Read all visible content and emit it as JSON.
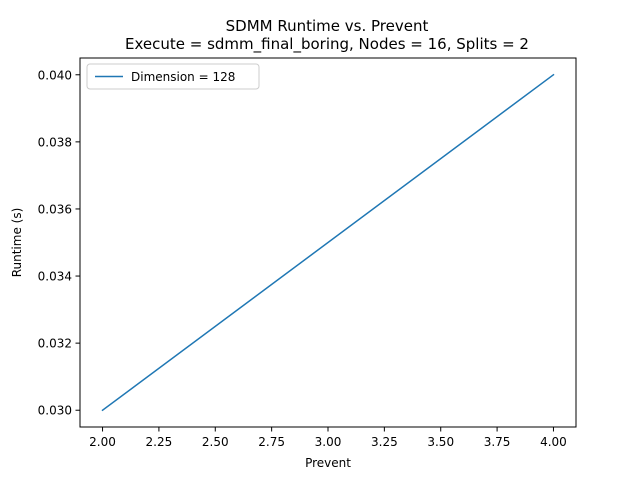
{
  "chart_data": {
    "type": "line",
    "title": "SDMM Runtime vs. Prevent",
    "subtitle": "Execute = sdmm_final_boring, Nodes = 16, Splits = 2",
    "xlabel": "Prevent",
    "ylabel": "Runtime (s)",
    "xlim": [
      1.9,
      4.1
    ],
    "ylim": [
      0.0295,
      0.0405
    ],
    "xticks": [
      2.0,
      2.25,
      2.5,
      2.75,
      3.0,
      3.25,
      3.5,
      3.75,
      4.0
    ],
    "xtick_labels": [
      "2.00",
      "2.25",
      "2.50",
      "2.75",
      "3.00",
      "3.25",
      "3.50",
      "3.75",
      "4.00"
    ],
    "yticks": [
      0.03,
      0.032,
      0.034,
      0.036,
      0.038,
      0.04
    ],
    "ytick_labels": [
      "0.030",
      "0.032",
      "0.034",
      "0.036",
      "0.038",
      "0.040"
    ],
    "grid": false,
    "legend_position": "top-left",
    "series": [
      {
        "name": "Dimension = 128",
        "color": "#1f77b4",
        "x": [
          2,
          4
        ],
        "y": [
          0.03,
          0.04
        ]
      }
    ]
  }
}
